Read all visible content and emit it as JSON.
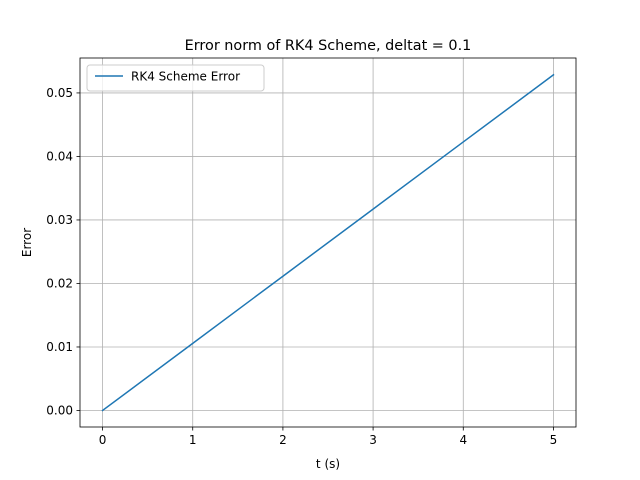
{
  "chart_data": {
    "type": "line",
    "title": "Error norm of RK4 Scheme, deltat = 0.1",
    "xlabel": "t (s)",
    "ylabel": "Error",
    "xlim": [
      -0.25,
      5.25
    ],
    "ylim": [
      -0.0026,
      0.0555
    ],
    "xticks": [
      0,
      1,
      2,
      3,
      4,
      5
    ],
    "xtick_labels": [
      "0",
      "1",
      "2",
      "3",
      "4",
      "5"
    ],
    "yticks": [
      0.0,
      0.01,
      0.02,
      0.03,
      0.04,
      0.05
    ],
    "ytick_labels": [
      "0.00",
      "0.01",
      "0.02",
      "0.03",
      "0.04",
      "0.05"
    ],
    "grid": true,
    "legend_position": "upper-left",
    "series": [
      {
        "name": "RK4 Scheme Error",
        "color": "#1f77b4",
        "x": [
          0,
          1,
          2,
          3,
          4,
          5
        ],
        "y": [
          0.0,
          0.01057,
          0.02114,
          0.03171,
          0.04228,
          0.05285
        ]
      }
    ]
  }
}
